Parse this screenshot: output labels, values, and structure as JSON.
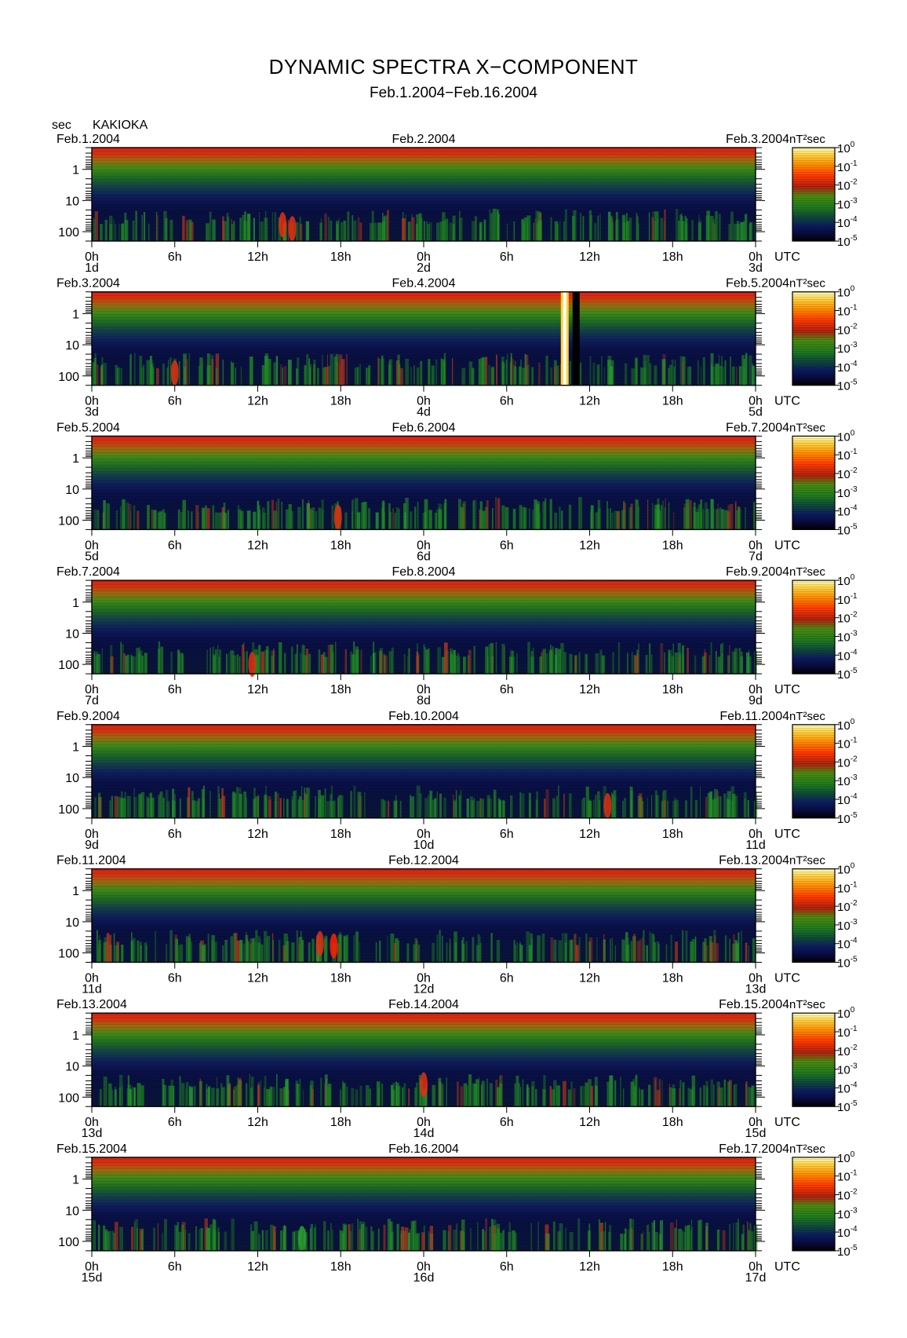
{
  "title": "DYNAMIC SPECTRA X−COMPONENT",
  "subtitle": "Feb.1.2004−Feb.16.2004",
  "y_unit_label": "sec",
  "station": "KAKIOKA",
  "x_unit_label": "UTC",
  "colorbar_unit": "nT²sec",
  "colorbar_ticks": [
    {
      "base": "10",
      "exp": "0"
    },
    {
      "base": "10",
      "exp": "-1"
    },
    {
      "base": "10",
      "exp": "-2"
    },
    {
      "base": "10",
      "exp": "-3"
    },
    {
      "base": "10",
      "exp": "-4"
    },
    {
      "base": "10",
      "exp": "-5"
    }
  ],
  "colors": {
    "spectrum_scale": [
      "#000000",
      "#0a0a4a",
      "#1a2a6a",
      "#0e5a2a",
      "#1f8a1f",
      "#5a8a10",
      "#c03010",
      "#ff2200",
      "#ff7a00",
      "#ffd040",
      "#ffffc0"
    ]
  },
  "chart_data": [
    {
      "type": "heatmap",
      "ylabel": "sec",
      "yticks": [
        "1",
        "10",
        "100"
      ],
      "y_scale": "log",
      "ylim": [
        0.2,
        200
      ],
      "xticks": [
        "0h",
        "6h",
        "12h",
        "18h",
        "0h",
        "6h",
        "12h",
        "18h",
        "0h"
      ],
      "day_labels": [
        "1d",
        "2d",
        "3d"
      ],
      "date_left": "Feb.1.2004",
      "date_mid": "Feb.2.2004",
      "date_right": "Feb.3.2004",
      "events": [
        {
          "time_h": 13.8,
          "period_s": 60,
          "level": "1e-3"
        },
        {
          "time_h": 14.5,
          "period_s": 80,
          "level": "1e-3"
        }
      ]
    },
    {
      "type": "heatmap",
      "ylabel": "sec",
      "yticks": [
        "1",
        "10",
        "100"
      ],
      "y_scale": "log",
      "ylim": [
        0.2,
        200
      ],
      "xticks": [
        "0h",
        "6h",
        "12h",
        "18h",
        "0h",
        "6h",
        "12h",
        "18h",
        "0h"
      ],
      "day_labels": [
        "3d",
        "4d",
        "5d"
      ],
      "date_left": "Feb.3.2004",
      "date_mid": "Feb.4.2004",
      "date_right": "Feb.5.2004",
      "events": [
        {
          "time_h": 34.2,
          "period_s": "0.2-200",
          "level": "1e0"
        },
        {
          "time_h": 6.0,
          "period_s": 80,
          "level": "1e-3"
        }
      ]
    },
    {
      "type": "heatmap",
      "ylabel": "sec",
      "yticks": [
        "1",
        "10",
        "100"
      ],
      "y_scale": "log",
      "ylim": [
        0.2,
        200
      ],
      "xticks": [
        "0h",
        "6h",
        "12h",
        "18h",
        "0h",
        "6h",
        "12h",
        "18h",
        "0h"
      ],
      "day_labels": [
        "5d",
        "6d",
        "7d"
      ],
      "date_left": "Feb.5.2004",
      "date_mid": "Feb.6.2004",
      "date_right": "Feb.7.2004",
      "events": [
        {
          "time_h": 17.8,
          "period_s": 80,
          "level": "1e-3"
        }
      ]
    },
    {
      "type": "heatmap",
      "ylabel": "sec",
      "yticks": [
        "1",
        "10",
        "100"
      ],
      "y_scale": "log",
      "ylim": [
        0.2,
        200
      ],
      "xticks": [
        "0h",
        "6h",
        "12h",
        "18h",
        "0h",
        "6h",
        "12h",
        "18h",
        "0h"
      ],
      "day_labels": [
        "7d",
        "8d",
        "9d"
      ],
      "date_left": "Feb.7.2004",
      "date_mid": "Feb.8.2004",
      "date_right": "Feb.9.2004",
      "events": [
        {
          "time_h": 11.6,
          "period_s": 100,
          "level": "1e-3"
        }
      ]
    },
    {
      "type": "heatmap",
      "ylabel": "sec",
      "yticks": [
        "1",
        "10",
        "100"
      ],
      "y_scale": "log",
      "ylim": [
        0.2,
        200
      ],
      "xticks": [
        "0h",
        "6h",
        "12h",
        "18h",
        "0h",
        "6h",
        "12h",
        "18h",
        "0h"
      ],
      "day_labels": [
        "9d",
        "10d",
        "11d"
      ],
      "date_left": "Feb.9.2004",
      "date_mid": "Feb.10.2004",
      "date_right": "Feb.11.2004",
      "events": [
        {
          "time_h": 37.3,
          "period_s": 80,
          "level": "1e-3"
        }
      ]
    },
    {
      "type": "heatmap",
      "ylabel": "sec",
      "yticks": [
        "1",
        "10",
        "100"
      ],
      "y_scale": "log",
      "ylim": [
        0.2,
        200
      ],
      "xticks": [
        "0h",
        "6h",
        "12h",
        "18h",
        "0h",
        "6h",
        "12h",
        "18h",
        "0h"
      ],
      "day_labels": [
        "11d",
        "12d",
        "13d"
      ],
      "date_left": "Feb.11.2004",
      "date_mid": "Feb.12.2004",
      "date_right": "Feb.13.2004",
      "events": [
        {
          "time_h": 17.5,
          "period_s": 60,
          "level": "1e-2"
        },
        {
          "time_h": 16.5,
          "period_s": 50,
          "level": "1e-3"
        }
      ]
    },
    {
      "type": "heatmap",
      "ylabel": "sec",
      "yticks": [
        "1",
        "10",
        "100"
      ],
      "y_scale": "log",
      "ylim": [
        0.2,
        200
      ],
      "xticks": [
        "0h",
        "6h",
        "12h",
        "18h",
        "0h",
        "6h",
        "12h",
        "18h",
        "0h"
      ],
      "day_labels": [
        "13d",
        "14d",
        "15d"
      ],
      "date_left": "Feb.13.2004",
      "date_mid": "Feb.14.2004",
      "date_right": "Feb.15.2004",
      "events": [
        {
          "time_h": 24.0,
          "period_s": 40,
          "level": "1e-3"
        }
      ]
    },
    {
      "type": "heatmap",
      "ylabel": "sec",
      "yticks": [
        "1",
        "10",
        "100"
      ],
      "y_scale": "log",
      "ylim": [
        0.2,
        200
      ],
      "xticks": [
        "0h",
        "6h",
        "12h",
        "18h",
        "0h",
        "6h",
        "12h",
        "18h",
        "0h"
      ],
      "day_labels": [
        "15d",
        "16d",
        "17d"
      ],
      "date_left": "Feb.15.2004",
      "date_mid": "Feb.16.2004",
      "date_right": "Feb.17.2004",
      "events": [
        {
          "time_h": 15.2,
          "period_s": 80,
          "level": "1e-4"
        }
      ]
    }
  ]
}
